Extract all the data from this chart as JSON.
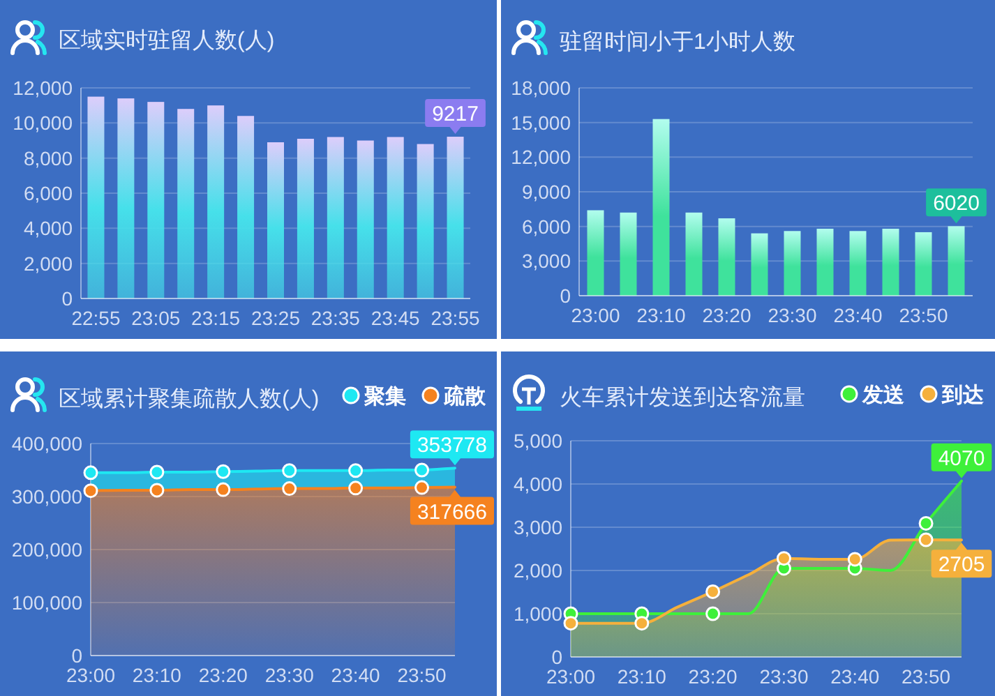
{
  "chart_data": [
    {
      "type": "bar",
      "title": "区域实时驻留人数(人)",
      "categories": [
        "22:55",
        null,
        "23:05",
        null,
        "23:15",
        null,
        "23:25",
        null,
        "23:35",
        null,
        "23:45",
        null,
        "23:55"
      ],
      "series": [
        {
          "color": "#46e0ea",
          "values": [
            11500,
            11400,
            11200,
            10800,
            11000,
            10400,
            8900,
            9100,
            9200,
            9000,
            9200,
            8800,
            9217
          ],
          "value_labels": [
            null,
            null,
            null,
            null,
            null,
            null,
            null,
            null,
            null,
            null,
            null,
            null,
            "9217"
          ]
        }
      ],
      "ylim": [
        0,
        12000
      ],
      "yticks": [
        {
          "value": 0,
          "label": "0"
        },
        {
          "value": 2000,
          "label": "2,000"
        },
        {
          "value": 4000,
          "label": "4,000"
        },
        {
          "value": 6000,
          "label": "6,000"
        },
        {
          "value": 8000,
          "label": "8,000"
        },
        {
          "value": 10000,
          "label": "10,000"
        },
        {
          "value": 12000,
          "label": "12,000"
        }
      ],
      "grid": "y"
    },
    {
      "type": "bar",
      "title": "驻留时间小于1小时人数",
      "categories": [
        "23:00",
        null,
        "23:10",
        null,
        "23:20",
        null,
        "23:30",
        null,
        "23:40",
        null,
        "23:50",
        null
      ],
      "series": [
        {
          "color": "#3fe29c",
          "values": [
            7400,
            7200,
            15300,
            7200,
            6700,
            5400,
            5600,
            5800,
            5600,
            5800,
            5500,
            6020
          ],
          "value_labels": [
            null,
            null,
            null,
            null,
            null,
            null,
            null,
            null,
            null,
            null,
            null,
            "6020"
          ]
        }
      ],
      "ylim": [
        0,
        18000
      ],
      "yticks": [
        {
          "value": 0,
          "label": "0"
        },
        {
          "value": 3000,
          "label": "3,000"
        },
        {
          "value": 6000,
          "label": "6,000"
        },
        {
          "value": 9000,
          "label": "9,000"
        },
        {
          "value": 12000,
          "label": "12,000"
        },
        {
          "value": 15000,
          "label": "15,000"
        },
        {
          "value": 18000,
          "label": "18,000"
        }
      ],
      "grid": "y"
    },
    {
      "type": "area",
      "title": "区域累计聚集疏散人数(人)",
      "categories": [
        "23:00",
        null,
        "23:10",
        null,
        "23:20",
        null,
        "23:30",
        null,
        "23:40",
        null,
        "23:50",
        null
      ],
      "series": [
        {
          "name": "聚集",
          "color": "#1ee8f2",
          "values": [
            345000,
            345000,
            346000,
            346000,
            347000,
            348000,
            349000,
            349000,
            349000,
            350000,
            350000,
            353778
          ],
          "value_labels": [
            null,
            null,
            null,
            null,
            null,
            null,
            null,
            null,
            null,
            null,
            null,
            "353778"
          ]
        },
        {
          "name": "疏散",
          "color": "#f5821f",
          "values": [
            311000,
            312000,
            312000,
            313000,
            313000,
            314000,
            315000,
            315000,
            316000,
            316000,
            317000,
            317666
          ],
          "value_labels": [
            null,
            null,
            null,
            null,
            null,
            null,
            null,
            null,
            null,
            null,
            null,
            "317666"
          ]
        }
      ],
      "ylim": [
        0,
        400000
      ],
      "yticks": [
        {
          "value": 0,
          "label": "0"
        },
        {
          "value": 100000,
          "label": "100,000"
        },
        {
          "value": 200000,
          "label": "200,000"
        },
        {
          "value": 300000,
          "label": "300,000"
        },
        {
          "value": 400000,
          "label": "400,000"
        }
      ],
      "grid": "y",
      "legend": "top right",
      "marker": "circle"
    },
    {
      "type": "area",
      "title": "火车累计发送到达客流量",
      "categories": [
        "23:00",
        null,
        "23:10",
        null,
        "23:20",
        null,
        "23:30",
        null,
        "23:40",
        null,
        "23:50",
        null
      ],
      "series": [
        {
          "name": "发送",
          "color": "#3ef03a",
          "values": [
            1000,
            1000,
            1000,
            1000,
            1000,
            1000,
            2050,
            2050,
            2050,
            2000,
            3090,
            4070
          ],
          "value_labels": [
            null,
            null,
            null,
            null,
            null,
            null,
            null,
            null,
            null,
            null,
            null,
            "4070"
          ]
        },
        {
          "name": "到达",
          "color": "#f5b03c",
          "values": [
            780,
            780,
            780,
            1150,
            1510,
            1900,
            2280,
            2260,
            2260,
            2700,
            2710,
            2705
          ],
          "value_labels": [
            null,
            null,
            null,
            null,
            null,
            null,
            null,
            null,
            null,
            null,
            null,
            "2705"
          ]
        }
      ],
      "ylim": [
        0,
        5000
      ],
      "yticks": [
        {
          "value": 0,
          "label": "0"
        },
        {
          "value": 1000,
          "label": "1,000"
        },
        {
          "value": 2000,
          "label": "2,000"
        },
        {
          "value": 3000,
          "label": "3,000"
        },
        {
          "value": 4000,
          "label": "4,000"
        },
        {
          "value": 5000,
          "label": "5,000"
        }
      ],
      "grid": "y",
      "legend": "top right",
      "marker": "circle"
    }
  ]
}
